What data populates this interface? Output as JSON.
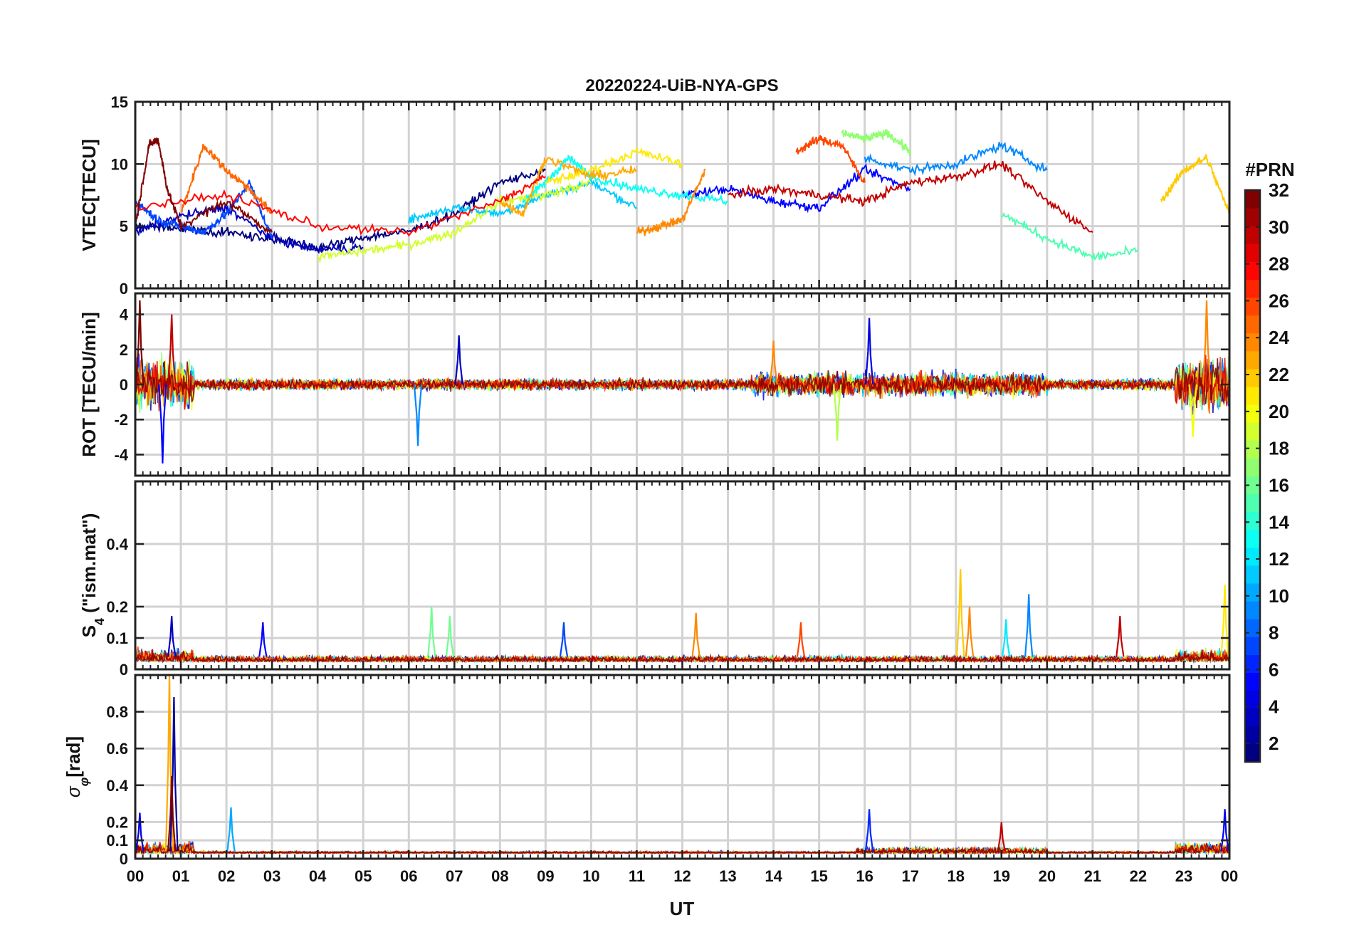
{
  "figure": {
    "title": "20220224-UiB-NYA-GPS",
    "xlabel": "UT",
    "x_ticks": [
      "00",
      "01",
      "02",
      "03",
      "04",
      "05",
      "06",
      "07",
      "08",
      "09",
      "10",
      "11",
      "12",
      "13",
      "14",
      "15",
      "16",
      "17",
      "18",
      "19",
      "20",
      "21",
      "22",
      "23",
      "00"
    ]
  },
  "colorbar": {
    "title": "#PRN",
    "ticks": [
      "2",
      "4",
      "6",
      "8",
      "10",
      "12",
      "14",
      "16",
      "18",
      "20",
      "22",
      "24",
      "26",
      "28",
      "30",
      "32"
    ],
    "range": [
      1,
      32
    ],
    "colormap": "jet"
  },
  "chart_data": [
    {
      "type": "line",
      "panel": "vtec",
      "ylabel": "VTEC[TECU]",
      "ylim": [
        0,
        15
      ],
      "yticks": [
        0,
        5,
        10,
        15
      ],
      "ytick_labels": [
        "0",
        "5",
        "10",
        "15"
      ],
      "xlim": [
        0,
        24
      ],
      "grid": true,
      "series": [
        {
          "prn": 1,
          "x": [
            0,
            1,
            2,
            3,
            4,
            5,
            6,
            7,
            8,
            9
          ],
          "y": [
            5.2,
            4.8,
            4.5,
            4.0,
            3.2,
            4.1,
            4.6,
            6.0,
            8.5,
            9.5
          ]
        },
        {
          "prn": 3,
          "x": [
            0,
            1,
            2,
            3,
            4,
            5
          ],
          "y": [
            4.5,
            5.8,
            6.5,
            4.0,
            3.1,
            3.3
          ]
        },
        {
          "prn": 5,
          "x": [
            12,
            13,
            14,
            15,
            16,
            17
          ],
          "y": [
            7.5,
            8.0,
            7.0,
            6.5,
            9.5,
            8.0
          ]
        },
        {
          "prn": 7,
          "x": [
            0,
            0.5,
            1,
            1.5,
            2,
            2.5,
            3
          ],
          "y": [
            7.0,
            5.5,
            5.0,
            4.5,
            6.0,
            8.5,
            4.0
          ]
        },
        {
          "prn": 9,
          "x": [
            16,
            17,
            18,
            19,
            20
          ],
          "y": [
            10.5,
            9.5,
            10.0,
            11.5,
            9.5
          ]
        },
        {
          "prn": 11,
          "x": [
            6,
            7,
            8,
            9,
            10,
            11
          ],
          "y": [
            5.5,
            6.5,
            6.0,
            7.5,
            8.5,
            6.5
          ]
        },
        {
          "prn": 13,
          "x": [
            8.5,
            9,
            9.5,
            10,
            11,
            12,
            13
          ],
          "y": [
            7.0,
            8.5,
            10.5,
            9.0,
            8.0,
            7.5,
            7.0
          ]
        },
        {
          "prn": 15,
          "x": [
            19,
            20,
            21,
            22
          ],
          "y": [
            6.0,
            4.0,
            2.5,
            3.0
          ]
        },
        {
          "prn": 17,
          "x": [
            15.5,
            16,
            16.5,
            17
          ],
          "y": [
            12.5,
            12.0,
            12.5,
            11.0
          ]
        },
        {
          "prn": 19,
          "x": [
            4,
            5,
            6,
            7,
            8,
            9,
            10
          ],
          "y": [
            2.5,
            3.0,
            3.5,
            4.5,
            7.0,
            7.5,
            8.5
          ]
        },
        {
          "prn": 21,
          "x": [
            9,
            10,
            11,
            12
          ],
          "y": [
            8.5,
            9.5,
            11.0,
            10.0
          ]
        },
        {
          "prn": 22,
          "x": [
            22.5,
            23,
            23.5,
            24
          ],
          "y": [
            7.0,
            9.5,
            10.5,
            6.0
          ]
        },
        {
          "prn": 23,
          "x": [
            8,
            8.5,
            9,
            10,
            11
          ],
          "y": [
            7.0,
            6.0,
            10.5,
            9.0,
            9.5
          ]
        },
        {
          "prn": 24,
          "x": [
            11,
            11.5,
            12,
            12.5
          ],
          "y": [
            4.5,
            5.0,
            5.5,
            9.5
          ]
        },
        {
          "prn": 25,
          "x": [
            1,
            1.5,
            2,
            2.5,
            3
          ],
          "y": [
            6.0,
            11.5,
            9.5,
            8.0,
            6.0
          ]
        },
        {
          "prn": 26,
          "x": [
            14.5,
            15,
            15.5,
            16
          ],
          "y": [
            11.0,
            12.0,
            11.5,
            8.5
          ]
        },
        {
          "prn": 28,
          "x": [
            0,
            2,
            4,
            6,
            8,
            9
          ],
          "y": [
            6.5,
            7.5,
            5.0,
            4.5,
            7.0,
            9.0
          ]
        },
        {
          "prn": 30,
          "x": [
            13,
            14,
            15,
            16,
            17,
            18,
            19,
            20,
            21
          ],
          "y": [
            7.5,
            8.0,
            7.5,
            7.0,
            8.5,
            9.0,
            10.0,
            7.0,
            4.5
          ]
        },
        {
          "prn": 32,
          "x": [
            0,
            0.3,
            0.5,
            0.7,
            1,
            2,
            3
          ],
          "y": [
            5.0,
            11.5,
            12.0,
            8.0,
            5.0,
            7.0,
            4.5
          ]
        }
      ]
    },
    {
      "type": "line",
      "panel": "rot",
      "ylabel": "ROT [TECU/min]",
      "ylim": [
        -5.2,
        5.2
      ],
      "yticks": [
        -4,
        -2,
        0,
        2,
        4
      ],
      "ytick_labels": [
        "-4",
        "-2",
        "0",
        "2",
        "4"
      ],
      "xlim": [
        0,
        24
      ],
      "grid": true,
      "note_on_data": "noise band around 0, larger excursions near 00-01 UT and 23-24 UT",
      "peaks": [
        {
          "x": 0.1,
          "y": 4.8,
          "prn": 32
        },
        {
          "x": 0.6,
          "y": -4.5,
          "prn": 5
        },
        {
          "x": 0.8,
          "y": 4.0,
          "prn": 30
        },
        {
          "x": 6.2,
          "y": -3.5,
          "prn": 9
        },
        {
          "x": 7.1,
          "y": 2.8,
          "prn": 3
        },
        {
          "x": 14.0,
          "y": 2.5,
          "prn": 24
        },
        {
          "x": 15.4,
          "y": -3.2,
          "prn": 18
        },
        {
          "x": 16.1,
          "y": 3.8,
          "prn": 4
        },
        {
          "x": 23.5,
          "y": 4.8,
          "prn": 24
        },
        {
          "x": 23.2,
          "y": -3.0,
          "prn": 20
        }
      ]
    },
    {
      "type": "line",
      "panel": "s4",
      "ylabel": "S",
      "ylabel_sub": "4",
      "ylabel_suffix": " (\"ism.mat\")",
      "ylim": [
        0,
        0.6
      ],
      "yticks": [
        0,
        0.1,
        0.2,
        0.4
      ],
      "ytick_labels": [
        "0",
        "0.1",
        "0.2",
        "0.4"
      ],
      "xlim": [
        0,
        24
      ],
      "grid": true,
      "peaks": [
        {
          "x": 0.8,
          "y": 0.17,
          "prn": 3
        },
        {
          "x": 2.8,
          "y": 0.15,
          "prn": 5
        },
        {
          "x": 6.5,
          "y": 0.2,
          "prn": 16
        },
        {
          "x": 6.9,
          "y": 0.17,
          "prn": 16
        },
        {
          "x": 9.4,
          "y": 0.15,
          "prn": 7
        },
        {
          "x": 12.3,
          "y": 0.18,
          "prn": 24
        },
        {
          "x": 14.6,
          "y": 0.15,
          "prn": 26
        },
        {
          "x": 18.1,
          "y": 0.32,
          "prn": 22
        },
        {
          "x": 18.3,
          "y": 0.2,
          "prn": 24
        },
        {
          "x": 19.6,
          "y": 0.24,
          "prn": 9
        },
        {
          "x": 19.1,
          "y": 0.16,
          "prn": 12
        },
        {
          "x": 21.6,
          "y": 0.17,
          "prn": 30
        },
        {
          "x": 23.9,
          "y": 0.27,
          "prn": 21
        }
      ]
    },
    {
      "type": "line",
      "panel": "sigma_phi",
      "ylabel": "σ",
      "ylabel_sub": "φ",
      "ylabel_suffix": "[rad]",
      "ylim": [
        0,
        1.0
      ],
      "yticks": [
        0,
        0.1,
        0.2,
        0.4,
        0.6,
        0.8
      ],
      "ytick_labels": [
        "0",
        "0.1",
        "0.2",
        "0.4",
        "0.6",
        "0.8"
      ],
      "xlim": [
        0,
        24
      ],
      "grid": true,
      "peaks": [
        {
          "x": 0.75,
          "y": 1.0,
          "prn": 23
        },
        {
          "x": 0.85,
          "y": 0.88,
          "prn": 2
        },
        {
          "x": 0.8,
          "y": 0.45,
          "prn": 32
        },
        {
          "x": 0.1,
          "y": 0.25,
          "prn": 4
        },
        {
          "x": 2.1,
          "y": 0.28,
          "prn": 10
        },
        {
          "x": 16.1,
          "y": 0.27,
          "prn": 6
        },
        {
          "x": 19.0,
          "y": 0.2,
          "prn": 30
        },
        {
          "x": 23.9,
          "y": 0.27,
          "prn": 5
        }
      ]
    }
  ]
}
